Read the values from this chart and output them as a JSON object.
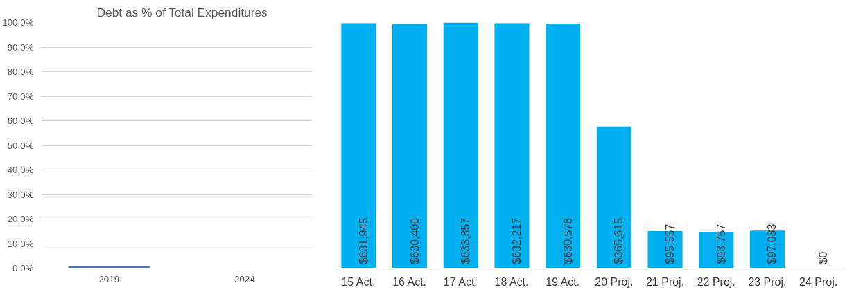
{
  "chart_data": [
    {
      "type": "bar",
      "title": "Debt as % of Total Expenditures",
      "categories": [
        "2019",
        "2024"
      ],
      "values": [
        0.8,
        0
      ],
      "color": "#4472c4",
      "ylim": [
        0,
        100
      ],
      "yticks": [
        {
          "value": 0,
          "label": "0.0%"
        },
        {
          "value": 10,
          "label": "10.0%"
        },
        {
          "value": 20,
          "label": "20.0%"
        },
        {
          "value": 30,
          "label": "30.0%"
        },
        {
          "value": 40,
          "label": "40.0%"
        },
        {
          "value": 50,
          "label": "50.0%"
        },
        {
          "value": 60,
          "label": "60.0%"
        },
        {
          "value": 70,
          "label": "70.0%"
        },
        {
          "value": 80,
          "label": "80.0%"
        },
        {
          "value": 90,
          "label": "90.0%"
        },
        {
          "value": 100,
          "label": "100.0%"
        }
      ],
      "grid": "y"
    },
    {
      "type": "bar",
      "categories": [
        "15 Act.",
        "16 Act.",
        "17 Act.",
        "18 Act.",
        "19 Act.",
        "20 Proj.",
        "21 Proj.",
        "22 Proj.",
        "23 Proj.",
        "24 Proj."
      ],
      "values": [
        631945,
        630400,
        633857,
        632217,
        630576,
        365615,
        95557,
        93757,
        97083,
        0
      ],
      "color": "#00b0f0",
      "value_labels": [
        "$631,945",
        "$630,400",
        "$633,857",
        "$632,217",
        "$630,576",
        "$365,615",
        "$95,557",
        "$93,757",
        "$97,083",
        "$0"
      ],
      "tick_labels": "x"
    }
  ]
}
